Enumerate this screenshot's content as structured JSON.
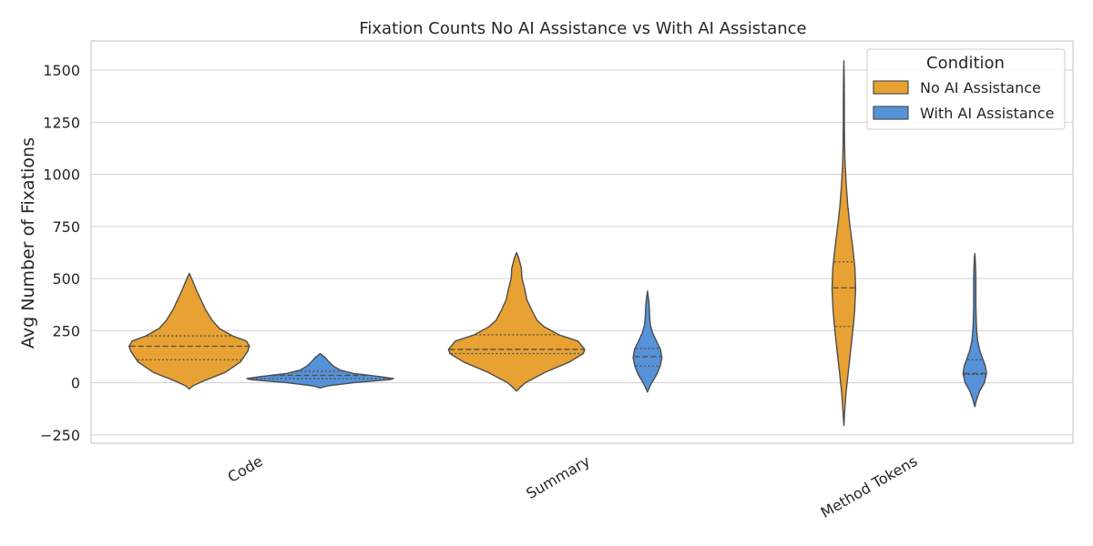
{
  "chart_data": {
    "type": "violin",
    "title": "Fixation Counts No AI Assistance vs With AI Assistance",
    "xlabel": "",
    "ylabel": "Avg Number of Fixations",
    "categories": [
      "Code",
      "Summary",
      "Method Tokens"
    ],
    "ylim": [
      -290,
      1640
    ],
    "yticks": [
      -250,
      0,
      250,
      500,
      750,
      1000,
      1250,
      1500
    ],
    "grid": true,
    "legend": {
      "title": "Condition",
      "position": "top-right"
    },
    "series": [
      {
        "name": "No AI Assistance",
        "color": "#e8a133",
        "violins": [
          {
            "min": -30,
            "max": 525,
            "q1": 110,
            "median": 175,
            "q3": 225,
            "mode": 160,
            "max_half_width": 0.46,
            "shape": [
              [
                -30,
                0.0
              ],
              [
                -15,
                0.06
              ],
              [
                10,
                0.25
              ],
              [
                50,
                0.6
              ],
              [
                100,
                0.85
              ],
              [
                150,
                0.97
              ],
              [
                175,
                1.0
              ],
              [
                200,
                0.95
              ],
              [
                225,
                0.72
              ],
              [
                260,
                0.5
              ],
              [
                300,
                0.38
              ],
              [
                350,
                0.27
              ],
              [
                400,
                0.19
              ],
              [
                450,
                0.11
              ],
              [
                500,
                0.04
              ],
              [
                525,
                0.0
              ]
            ]
          },
          {
            "min": -40,
            "max": 625,
            "q1": 140,
            "median": 160,
            "q3": 230,
            "mode": 150,
            "max_half_width": 0.52,
            "shape": [
              [
                -40,
                0.0
              ],
              [
                -20,
                0.06
              ],
              [
                0,
                0.13
              ],
              [
                50,
                0.42
              ],
              [
                100,
                0.78
              ],
              [
                140,
                0.98
              ],
              [
                160,
                1.0
              ],
              [
                200,
                0.9
              ],
              [
                230,
                0.62
              ],
              [
                270,
                0.4
              ],
              [
                300,
                0.3
              ],
              [
                350,
                0.22
              ],
              [
                400,
                0.15
              ],
              [
                450,
                0.12
              ],
              [
                500,
                0.08
              ],
              [
                550,
                0.07
              ],
              [
                600,
                0.03
              ],
              [
                625,
                0.0
              ]
            ]
          },
          {
            "min": -205,
            "max": 1545,
            "q1": 270,
            "median": 455,
            "q3": 580,
            "mode": 450,
            "max_half_width": 0.09,
            "shape": [
              [
                -205,
                0.0
              ],
              [
                -150,
                0.06
              ],
              [
                -50,
                0.18
              ],
              [
                50,
                0.37
              ],
              [
                150,
                0.57
              ],
              [
                270,
                0.8
              ],
              [
                350,
                0.92
              ],
              [
                450,
                1.0
              ],
              [
                550,
                0.94
              ],
              [
                650,
                0.75
              ],
              [
                750,
                0.52
              ],
              [
                850,
                0.33
              ],
              [
                950,
                0.2
              ],
              [
                1050,
                0.1
              ],
              [
                1150,
                0.06
              ],
              [
                1250,
                0.04
              ],
              [
                1350,
                0.04
              ],
              [
                1450,
                0.03
              ],
              [
                1545,
                0.0
              ]
            ]
          }
        ]
      },
      {
        "name": "With AI Assistance",
        "color": "#5692d8",
        "violins": [
          {
            "min": -25,
            "max": 140,
            "q1": 20,
            "median": 35,
            "q3": 55,
            "mode": 20,
            "max_half_width": 0.56,
            "shape": [
              [
                -25,
                0.0
              ],
              [
                -15,
                0.1
              ],
              [
                0,
                0.45
              ],
              [
                15,
                0.95
              ],
              [
                20,
                1.0
              ],
              [
                30,
                0.8
              ],
              [
                45,
                0.45
              ],
              [
                60,
                0.28
              ],
              [
                80,
                0.18
              ],
              [
                100,
                0.12
              ],
              [
                120,
                0.07
              ],
              [
                140,
                0.0
              ]
            ]
          },
          {
            "min": -45,
            "max": 440,
            "q1": 80,
            "median": 125,
            "q3": 165,
            "mode": 120,
            "max_half_width": 0.11,
            "shape": [
              [
                -45,
                0.0
              ],
              [
                -20,
                0.15
              ],
              [
                0,
                0.3
              ],
              [
                40,
                0.65
              ],
              [
                80,
                0.88
              ],
              [
                120,
                1.0
              ],
              [
                160,
                0.9
              ],
              [
                200,
                0.62
              ],
              [
                240,
                0.35
              ],
              [
                280,
                0.2
              ],
              [
                320,
                0.15
              ],
              [
                360,
                0.13
              ],
              [
                400,
                0.08
              ],
              [
                440,
                0.0
              ]
            ]
          },
          {
            "min": -115,
            "max": 620,
            "q1": 40,
            "median": 45,
            "q3": 110,
            "mode": 45,
            "max_half_width": 0.09,
            "shape": [
              [
                -115,
                0.0
              ],
              [
                -80,
                0.16
              ],
              [
                -40,
                0.42
              ],
              [
                0,
                0.82
              ],
              [
                45,
                1.0
              ],
              [
                80,
                0.9
              ],
              [
                110,
                0.7
              ],
              [
                150,
                0.45
              ],
              [
                200,
                0.25
              ],
              [
                250,
                0.16
              ],
              [
                300,
                0.12
              ],
              [
                350,
                0.1
              ],
              [
                400,
                0.09
              ],
              [
                450,
                0.09
              ],
              [
                500,
                0.09
              ],
              [
                550,
                0.07
              ],
              [
                600,
                0.03
              ],
              [
                620,
                0.0
              ]
            ]
          }
        ]
      }
    ]
  }
}
